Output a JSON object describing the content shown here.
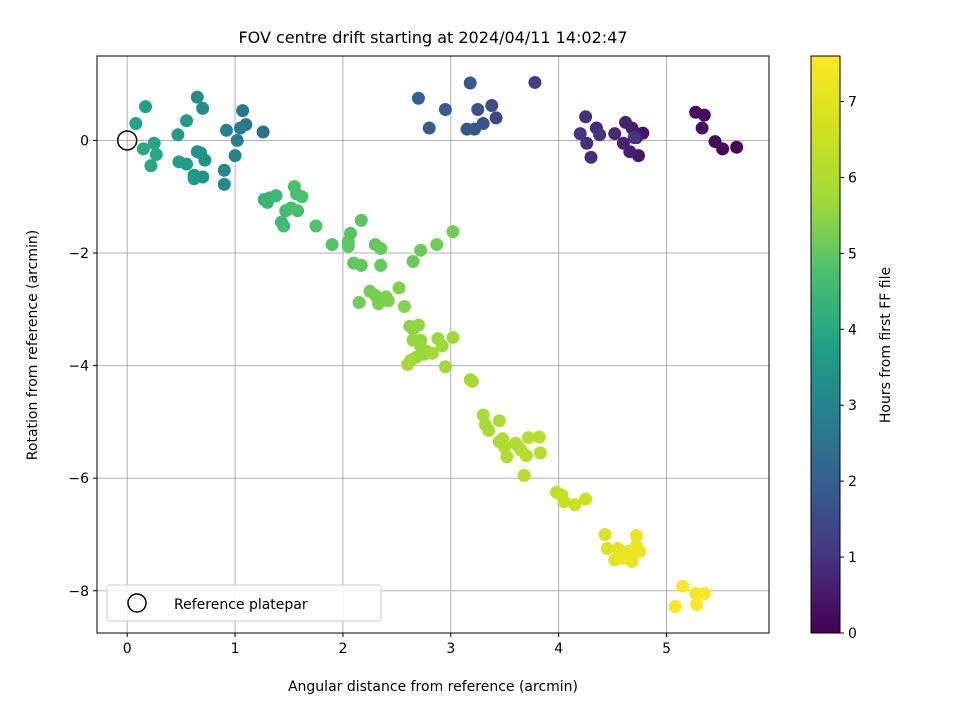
{
  "chart_data": {
    "type": "scatter",
    "title": "FOV centre drift starting at 2024/04/11 14:02:47",
    "xlabel": "Angular distance from reference (arcmin)",
    "ylabel": "Rotation from reference (arcmin)",
    "xlim": [
      -0.28,
      5.95
    ],
    "ylim": [
      -8.75,
      1.5
    ],
    "xticks": [
      0,
      1,
      2,
      3,
      4,
      5
    ],
    "yticks": [
      0,
      -2,
      -4,
      -6,
      -8
    ],
    "grid": true,
    "colormap": "viridis",
    "colorbar": {
      "label": "Hours from first FF file",
      "range": [
        0,
        7.6
      ],
      "ticks": [
        0,
        1,
        2,
        3,
        4,
        5,
        6,
        7
      ]
    },
    "legend": {
      "location": "lower-left",
      "entries": [
        "Reference platepar"
      ]
    },
    "reference_point": {
      "x": 0,
      "y": 0
    },
    "points": [
      [
        5.65,
        -0.12,
        0.05
      ],
      [
        5.52,
        -0.15,
        0.12
      ],
      [
        5.45,
        -0.02,
        0.18
      ],
      [
        5.35,
        0.45,
        0.22
      ],
      [
        5.27,
        0.5,
        0.25
      ],
      [
        5.33,
        0.22,
        0.3
      ],
      [
        4.78,
        0.13,
        0.4
      ],
      [
        4.74,
        -0.27,
        0.45
      ],
      [
        4.72,
        0.05,
        0.5
      ],
      [
        4.68,
        0.22,
        0.55
      ],
      [
        4.66,
        -0.2,
        0.6
      ],
      [
        4.62,
        0.32,
        0.65
      ],
      [
        4.6,
        -0.05,
        0.7
      ],
      [
        4.52,
        0.12,
        0.75
      ],
      [
        4.35,
        0.22,
        0.8
      ],
      [
        4.3,
        -0.3,
        0.85
      ],
      [
        4.26,
        -0.05,
        0.9
      ],
      [
        4.25,
        0.42,
        0.95
      ],
      [
        4.2,
        0.12,
        1.0
      ],
      [
        4.38,
        0.1,
        1.05
      ],
      [
        4.7,
        0.05,
        1.1
      ],
      [
        3.78,
        1.03,
        1.3
      ],
      [
        3.42,
        0.4,
        1.45
      ],
      [
        3.38,
        0.62,
        1.55
      ],
      [
        3.3,
        0.3,
        1.65
      ],
      [
        3.25,
        0.55,
        1.7
      ],
      [
        3.22,
        0.2,
        1.75
      ],
      [
        3.15,
        0.2,
        1.8
      ],
      [
        3.18,
        1.02,
        1.85
      ],
      [
        2.95,
        0.55,
        1.9
      ],
      [
        2.8,
        0.22,
        1.95
      ],
      [
        2.7,
        0.75,
        2.0
      ],
      [
        1.26,
        0.15,
        2.5
      ],
      [
        1.1,
        0.28,
        2.6
      ],
      [
        1.07,
        0.53,
        2.7
      ],
      [
        1.05,
        0.22,
        2.8
      ],
      [
        1.02,
        0.0,
        2.85
      ],
      [
        1.0,
        -0.27,
        2.95
      ],
      [
        0.92,
        0.18,
        3.0
      ],
      [
        0.9,
        -0.53,
        3.1
      ],
      [
        0.9,
        -0.78,
        3.15
      ],
      [
        0.7,
        0.57,
        3.2
      ],
      [
        0.65,
        0.77,
        3.25
      ],
      [
        0.72,
        -0.35,
        3.3
      ],
      [
        0.68,
        -0.22,
        3.35
      ],
      [
        0.65,
        -0.2,
        3.4
      ],
      [
        0.7,
        -0.65,
        3.45
      ],
      [
        0.62,
        -0.62,
        3.5
      ],
      [
        0.62,
        -0.68,
        3.55
      ],
      [
        0.55,
        0.35,
        3.6
      ],
      [
        0.47,
        0.1,
        3.65
      ],
      [
        0.55,
        -0.42,
        3.7
      ],
      [
        0.48,
        -0.38,
        3.75
      ],
      [
        0.17,
        0.6,
        3.8
      ],
      [
        0.08,
        0.3,
        3.85
      ],
      [
        0.25,
        -0.05,
        3.9
      ],
      [
        0.27,
        -0.25,
        3.95
      ],
      [
        0.22,
        -0.45,
        4.0
      ],
      [
        0.15,
        -0.15,
        4.05
      ],
      [
        1.27,
        -1.05,
        4.3
      ],
      [
        1.32,
        -1.02,
        4.35
      ],
      [
        1.3,
        -1.1,
        4.4
      ],
      [
        1.38,
        -0.98,
        4.45
      ],
      [
        1.43,
        -1.45,
        4.5
      ],
      [
        1.47,
        -1.25,
        4.55
      ],
      [
        1.45,
        -1.52,
        4.6
      ],
      [
        1.52,
        -1.2,
        4.65
      ],
      [
        1.57,
        -0.95,
        4.7
      ],
      [
        1.58,
        -1.25,
        4.72
      ],
      [
        1.55,
        -0.82,
        4.75
      ],
      [
        1.62,
        -1.0,
        4.78
      ],
      [
        1.75,
        -1.52,
        4.8
      ],
      [
        1.9,
        -1.85,
        4.85
      ],
      [
        2.05,
        -1.8,
        4.88
      ],
      [
        2.07,
        -1.65,
        4.9
      ],
      [
        2.17,
        -1.42,
        4.92
      ],
      [
        2.05,
        -1.88,
        4.95
      ],
      [
        2.1,
        -2.18,
        4.98
      ],
      [
        2.17,
        -2.22,
        5.0
      ],
      [
        2.3,
        -1.85,
        5.02
      ],
      [
        2.35,
        -1.92,
        5.05
      ],
      [
        2.35,
        -2.22,
        5.08
      ],
      [
        2.65,
        -2.15,
        5.1
      ],
      [
        2.72,
        -1.95,
        5.12
      ],
      [
        2.87,
        -1.85,
        5.15
      ],
      [
        3.02,
        -1.62,
        5.18
      ],
      [
        2.15,
        -2.88,
        5.2
      ],
      [
        2.25,
        -2.68,
        5.22
      ],
      [
        2.3,
        -2.75,
        5.25
      ],
      [
        2.33,
        -2.9,
        5.28
      ],
      [
        2.4,
        -2.78,
        5.3
      ],
      [
        2.42,
        -2.85,
        5.32
      ],
      [
        2.52,
        -2.62,
        5.35
      ],
      [
        2.57,
        -2.95,
        5.38
      ],
      [
        2.62,
        -3.3,
        5.45
      ],
      [
        2.65,
        -3.35,
        5.48
      ],
      [
        2.7,
        -3.28,
        5.5
      ],
      [
        2.72,
        -3.55,
        5.52
      ],
      [
        2.78,
        -3.75,
        5.55
      ],
      [
        2.75,
        -3.8,
        5.58
      ],
      [
        2.65,
        -3.55,
        5.6
      ],
      [
        2.72,
        -3.65,
        5.62
      ],
      [
        2.68,
        -3.85,
        5.64
      ],
      [
        2.88,
        -3.52,
        5.66
      ],
      [
        2.92,
        -3.65,
        5.68
      ],
      [
        2.95,
        -4.02,
        5.7
      ],
      [
        3.02,
        -3.5,
        5.72
      ],
      [
        2.83,
        -3.78,
        5.74
      ],
      [
        2.63,
        -3.9,
        5.76
      ],
      [
        2.6,
        -3.98,
        5.78
      ],
      [
        3.18,
        -4.25,
        5.8
      ],
      [
        3.2,
        -4.28,
        5.82
      ],
      [
        3.3,
        -4.88,
        5.85
      ],
      [
        3.32,
        -5.05,
        5.88
      ],
      [
        3.35,
        -5.15,
        5.9
      ],
      [
        3.45,
        -4.98,
        5.92
      ],
      [
        3.45,
        -5.35,
        5.94
      ],
      [
        3.5,
        -5.45,
        5.96
      ],
      [
        3.48,
        -5.3,
        5.98
      ],
      [
        3.52,
        -5.62,
        6.0
      ],
      [
        3.6,
        -5.38,
        6.02
      ],
      [
        3.62,
        -5.42,
        6.04
      ],
      [
        3.65,
        -5.5,
        6.06
      ],
      [
        3.7,
        -5.6,
        6.08
      ],
      [
        3.72,
        -5.28,
        6.1
      ],
      [
        3.68,
        -5.95,
        6.12
      ],
      [
        3.82,
        -5.27,
        6.14
      ],
      [
        3.83,
        -5.55,
        6.16
      ],
      [
        3.98,
        -6.25,
        6.4
      ],
      [
        4.03,
        -6.3,
        6.45
      ],
      [
        4.05,
        -6.42,
        6.5
      ],
      [
        4.15,
        -6.47,
        6.55
      ],
      [
        4.25,
        -6.37,
        6.6
      ],
      [
        4.43,
        -7.0,
        6.9
      ],
      [
        4.45,
        -7.25,
        6.95
      ],
      [
        4.52,
        -7.45,
        7.0
      ],
      [
        4.55,
        -7.25,
        7.05
      ],
      [
        4.6,
        -7.35,
        7.1
      ],
      [
        4.62,
        -7.42,
        7.12
      ],
      [
        4.65,
        -7.3,
        7.15
      ],
      [
        4.68,
        -7.48,
        7.18
      ],
      [
        4.72,
        -7.02,
        7.2
      ],
      [
        4.75,
        -7.3,
        7.22
      ],
      [
        4.72,
        -7.2,
        7.24
      ],
      [
        4.58,
        -7.42,
        7.26
      ],
      [
        5.08,
        -8.28,
        7.45
      ],
      [
        5.15,
        -7.92,
        7.5
      ],
      [
        5.27,
        -8.05,
        7.52
      ],
      [
        5.28,
        -8.25,
        7.55
      ],
      [
        5.35,
        -8.05,
        7.58
      ]
    ]
  }
}
